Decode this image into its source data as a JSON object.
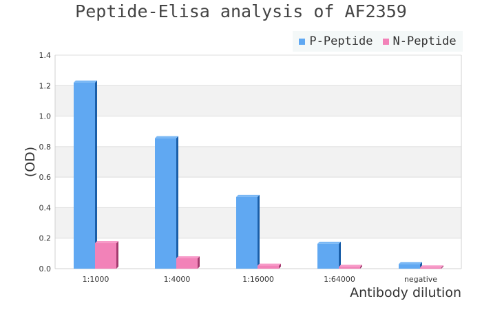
{
  "chart_data": {
    "type": "bar",
    "title": "Peptide-Elisa analysis of AF2359",
    "xlabel": "Antibody dilution",
    "ylabel": "(OD)",
    "categories": [
      "1:1000",
      "1:4000",
      "1:16000",
      "1:64000",
      "negative"
    ],
    "series": [
      {
        "name": "P-Peptide",
        "color": "#60a8f2",
        "values": [
          1.22,
          0.855,
          0.47,
          0.163,
          0.03
        ]
      },
      {
        "name": "N-Peptide",
        "color": "#f282b8",
        "values": [
          0.167,
          0.068,
          0.02,
          0.012,
          0.008
        ]
      }
    ],
    "ylim": [
      0,
      1.4
    ],
    "yticks": [
      "0.0",
      "0.2",
      "0.4",
      "0.6",
      "0.8",
      "1.0",
      "1.2",
      "1.4"
    ],
    "grid": true,
    "legend_position": "top-right"
  }
}
